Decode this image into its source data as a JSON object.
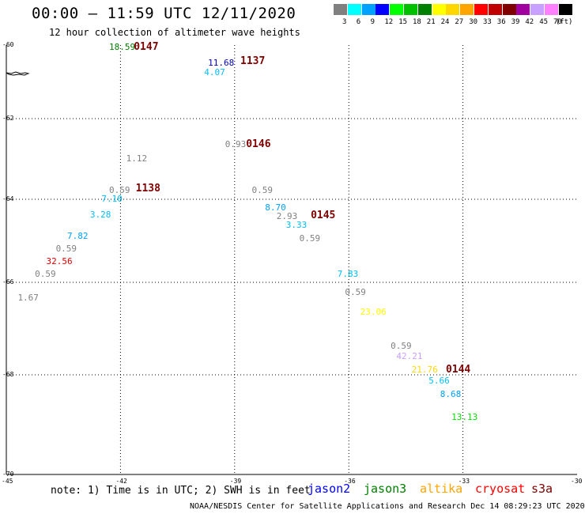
{
  "header": {
    "title": "00:00 – 11:59 UTC 12/11/2020",
    "subtitle": "12 hour collection of altimeter wave heights"
  },
  "color_scale": {
    "unit": "(ft)",
    "swatches": [
      {
        "color": "#808080",
        "label": "3"
      },
      {
        "color": "#00ffff",
        "label": "6"
      },
      {
        "color": "#00a0ff",
        "label": "9"
      },
      {
        "color": "#0000ff",
        "label": "12"
      },
      {
        "color": "#00ff00",
        "label": "15"
      },
      {
        "color": "#00c000",
        "label": "18"
      },
      {
        "color": "#008000",
        "label": "21"
      },
      {
        "color": "#ffff00",
        "label": "24"
      },
      {
        "color": "#ffd700",
        "label": "27"
      },
      {
        "color": "#ffa500",
        "label": "30"
      },
      {
        "color": "#ff0000",
        "label": "33"
      },
      {
        "color": "#c00000",
        "label": "36"
      },
      {
        "color": "#800000",
        "label": "39"
      },
      {
        "color": "#a000a0",
        "label": "42"
      },
      {
        "color": "#c8a0ff",
        "label": "45"
      },
      {
        "color": "#ff80ff",
        "label": "70"
      },
      {
        "color": "#000000",
        "label": ""
      }
    ]
  },
  "axes": {
    "lat_labels": [
      "-60",
      "-62",
      "-64",
      "-66",
      "-68",
      "-70"
    ],
    "lon_labels": [
      "-45",
      "-42",
      "-39",
      "-36",
      "-33",
      "-30"
    ]
  },
  "map": {
    "lon_range": [
      -45,
      -30
    ],
    "lat_range": [
      -70,
      -60
    ]
  },
  "measurements": [
    {
      "value": "18.59",
      "color": "#008000",
      "lon": -42.3,
      "lat": -60.06
    },
    {
      "value": "11.68",
      "color": "#0000c0",
      "lon": -39.7,
      "lat": -60.5
    },
    {
      "value": "4.07",
      "color": "#00c0ff",
      "lon": -39.8,
      "lat": -60.75
    },
    {
      "value": "0.93",
      "color": "#808080",
      "lon": -39.25,
      "lat": -62.65
    },
    {
      "value": "1.12",
      "color": "#808080",
      "lon": -41.85,
      "lat": -63.0
    },
    {
      "value": "0.59",
      "color": "#808080",
      "lon": -42.3,
      "lat": -63.78
    },
    {
      "value": "7.10",
      "color": "#00c0ff",
      "lon": -42.5,
      "lat": -64.0
    },
    {
      "value": "0.59",
      "color": "#808080",
      "lon": -38.55,
      "lat": -63.78
    },
    {
      "value": "8.70",
      "color": "#00a0ff",
      "lon": -38.2,
      "lat": -64.2
    },
    {
      "value": "2.93",
      "color": "#808080",
      "lon": -37.9,
      "lat": -64.42
    },
    {
      "value": "3.28",
      "color": "#00c0ff",
      "lon": -42.8,
      "lat": -64.38
    },
    {
      "value": "3.33",
      "color": "#00c0ff",
      "lon": -37.65,
      "lat": -64.63
    },
    {
      "value": "7.82",
      "color": "#00a0ff",
      "lon": -43.4,
      "lat": -64.9
    },
    {
      "value": "0.59",
      "color": "#808080",
      "lon": -37.3,
      "lat": -64.95
    },
    {
      "value": "0.59",
      "color": "#808080",
      "lon": -43.7,
      "lat": -65.2
    },
    {
      "value": "32.56",
      "color": "#e00000",
      "lon": -43.95,
      "lat": -65.5
    },
    {
      "value": "0.59",
      "color": "#808080",
      "lon": -44.25,
      "lat": -65.8
    },
    {
      "value": "7.83",
      "color": "#00c0ff",
      "lon": -36.3,
      "lat": -65.8
    },
    {
      "value": "0.59",
      "color": "#808080",
      "lon": -36.1,
      "lat": -66.23
    },
    {
      "value": "1.67",
      "color": "#808080",
      "lon": -44.7,
      "lat": -66.35
    },
    {
      "value": "23.06",
      "color": "#ffff00",
      "lon": -35.7,
      "lat": -66.65
    },
    {
      "value": "0.59",
      "color": "#808080",
      "lon": -34.9,
      "lat": -67.38
    },
    {
      "value": "42.21",
      "color": "#c8a0ff",
      "lon": -34.75,
      "lat": -67.6
    },
    {
      "value": "21.76",
      "color": "#ffd700",
      "lon": -34.35,
      "lat": -67.9
    },
    {
      "value": "5.66",
      "color": "#00c0ff",
      "lon": -33.9,
      "lat": -68.12
    },
    {
      "value": "8.68",
      "color": "#00a0ff",
      "lon": -33.6,
      "lat": -68.4
    },
    {
      "value": "13.13",
      "color": "#00e000",
      "lon": -33.3,
      "lat": -68.85
    }
  ],
  "passes": [
    {
      "label": "0147",
      "lon": -41.65,
      "lat": -60.06
    },
    {
      "label": "1137",
      "lon": -38.85,
      "lat": -60.45
    },
    {
      "label": "0146",
      "lon": -38.7,
      "lat": -62.65
    },
    {
      "label": "1138",
      "lon": -41.6,
      "lat": -63.75
    },
    {
      "label": "0145",
      "lon": -37.0,
      "lat": -64.4
    },
    {
      "label": "0144",
      "lon": -33.45,
      "lat": -67.9
    }
  ],
  "note": "note: 1) Time is in UTC; 2) SWH is in feet",
  "satellites": [
    {
      "name": "jason2",
      "color": "#0000ff"
    },
    {
      "name": "jason3",
      "color": "#008000"
    },
    {
      "name": "altika",
      "color": "#ffa500"
    },
    {
      "name": "cryosat",
      "color": "#ff0000"
    },
    {
      "name": "s3a",
      "color": "#800000"
    }
  ],
  "footer": "NOAA/NESDIS Center for Satellite Applications and Research    Dec 14 08:29:23 UTC 2020"
}
